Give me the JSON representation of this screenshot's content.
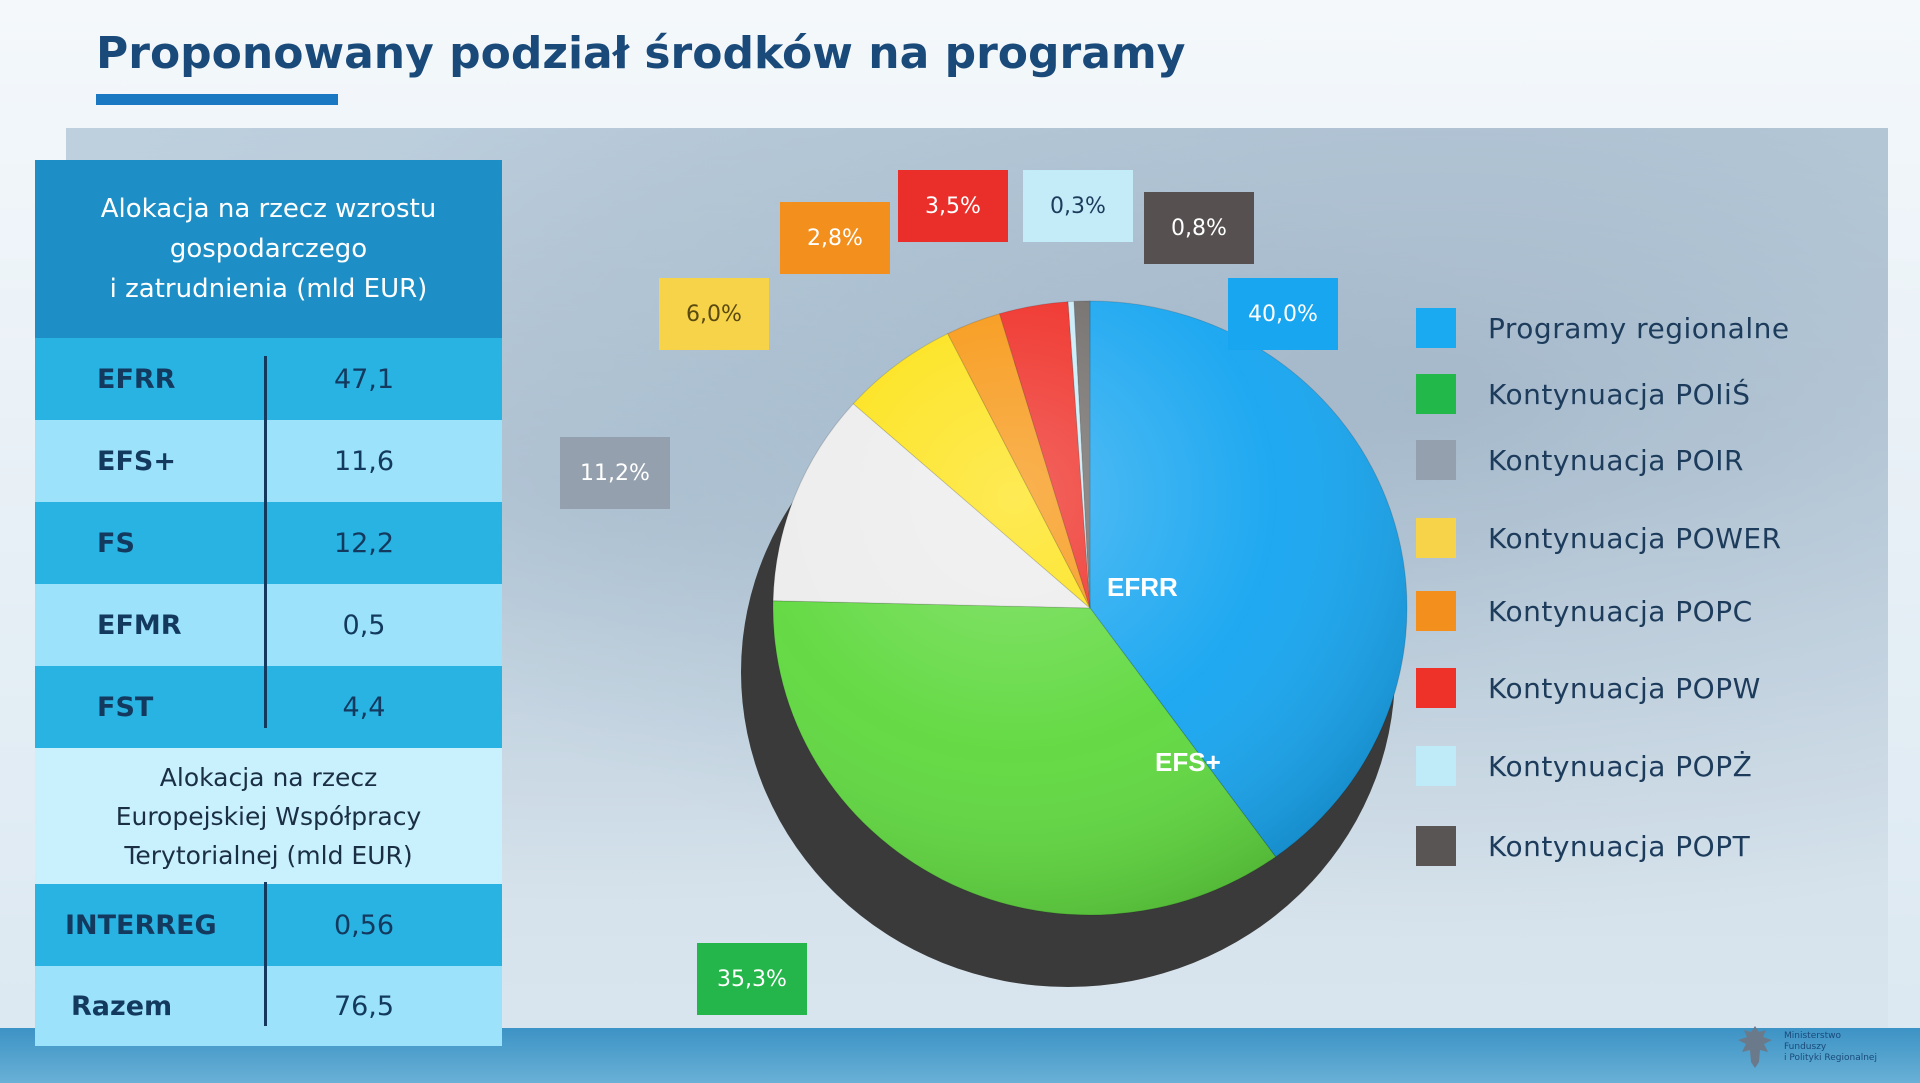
{
  "slide": {
    "title": "Proponowany podział środków na programy",
    "colors": {
      "title": "#1a4a7a",
      "accent": "#1a78c2"
    }
  },
  "allocation_table": {
    "header": [
      "Alokacja na rzecz wzrostu",
      "gospodarczego",
      "i zatrudnienia (mld EUR)"
    ],
    "rows": [
      {
        "fund": "EFRR",
        "value": "47,1"
      },
      {
        "fund": "EFS+",
        "value": "11,6"
      },
      {
        "fund": "FS",
        "value": "12,2"
      },
      {
        "fund": "EFMR",
        "value": "0,5"
      },
      {
        "fund": "FST",
        "value": "4,4"
      }
    ],
    "subheader": [
      "Alokacja na rzecz",
      "Europejskiej Współpracy",
      "Terytorialnej (mld EUR)"
    ],
    "interreg": {
      "fund": "INTERREG",
      "value": "0,56"
    },
    "total": {
      "fund": "Razem",
      "value": "76,5"
    }
  },
  "chart_data": {
    "type": "pie",
    "title": "",
    "slices": [
      {
        "name": "Programy regionalne",
        "value": 40.0,
        "label": "40,0%",
        "color": "#16a5f0"
      },
      {
        "name": "Kontynuacja  POIiŚ",
        "value": 35.3,
        "label": "35,3%",
        "color": "#5fd93e"
      },
      {
        "name": "Kontynuacja  POIR",
        "value": 11.2,
        "label": "11,2%",
        "color": "#ececec"
      },
      {
        "name": "Kontynuacja  POWER",
        "value": 6.0,
        "label": "6,0%",
        "color": "#fde212"
      },
      {
        "name": "Kontynuacja  POPC",
        "value": 2.8,
        "label": "2,8%",
        "color": "#f7950f"
      },
      {
        "name": "Kontynuacja  POPW",
        "value": 3.5,
        "label": "3,5%",
        "color": "#ee2a22"
      },
      {
        "name": "Kontynuacja  POPŻ",
        "value": 0.3,
        "label": "0,3%",
        "color": "#c7ecf8"
      },
      {
        "name": "Kontynuacja  POPT",
        "value": 0.8,
        "label": "0,8%",
        "color": "#6e6a68"
      }
    ],
    "annotations": [
      "EFRR",
      "EFS+"
    ],
    "legend": [
      {
        "label": "Programy regionalne",
        "color": "#1aaaf2"
      },
      {
        "label": "Kontynuacja  POIiŚ",
        "color": "#23b84a"
      },
      {
        "label": "Kontynuacja  POIR",
        "color": "#94a0ad"
      },
      {
        "label": "Kontynuacja  POWER",
        "color": "#f7d34a"
      },
      {
        "label": "Kontynuacja  POPC",
        "color": "#f38f1d"
      },
      {
        "label": "Kontynuacja  POPW",
        "color": "#ee3129"
      },
      {
        "label": "Kontynuacja  POPŻ",
        "color": "#bfeaf8"
      },
      {
        "label": "Kontynuacja  POPT",
        "color": "#5a5555"
      }
    ],
    "legend_position": "right",
    "label_boxes": [
      {
        "text": "40,0%",
        "color": "#18a6f1"
      },
      {
        "text": "35,3%",
        "color": "#24b64a"
      },
      {
        "text": "11,2%",
        "color": "#94a0ad"
      },
      {
        "text": "6,0%",
        "color": "#f7d34a",
        "text_color": "#5a4a10"
      },
      {
        "text": "2,8%",
        "color": "#f38f1d"
      },
      {
        "text": "3,5%",
        "color": "#ea2f2a"
      },
      {
        "text": "0,3%",
        "color": "#c3ebf8",
        "text_color": "#1d3c5c"
      },
      {
        "text": "0,8%",
        "color": "#565050"
      }
    ]
  },
  "logo": {
    "org_lines": [
      "Ministerstwo",
      "Funduszy",
      "i Polityki Regionalnej"
    ]
  }
}
